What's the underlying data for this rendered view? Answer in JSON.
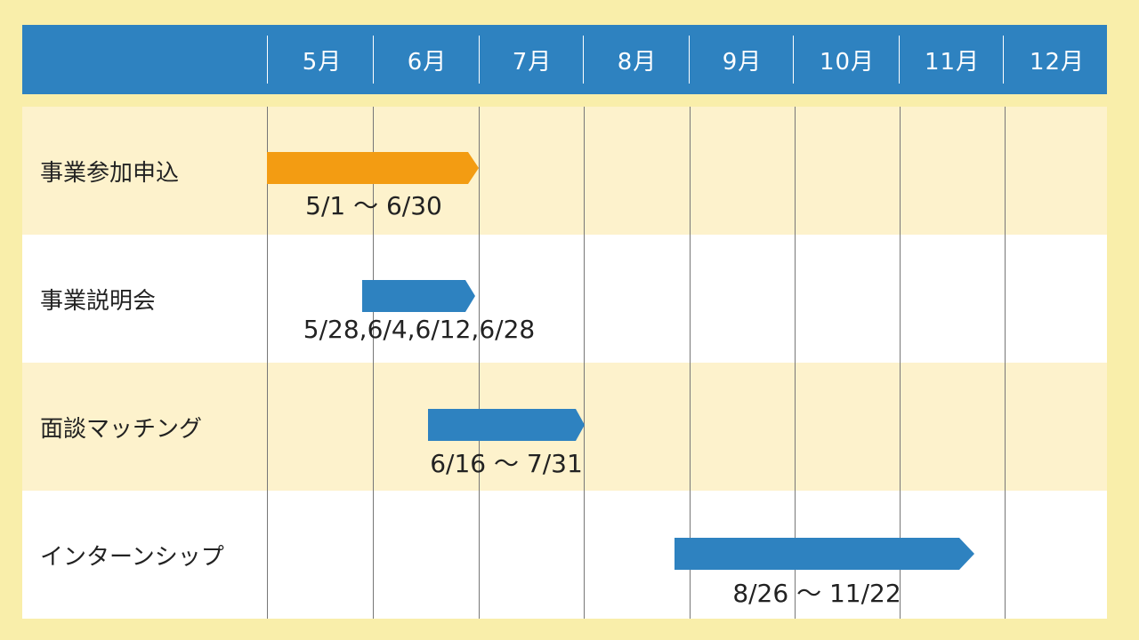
{
  "header": {
    "months": [
      "5月",
      "6月",
      "7月",
      "8月",
      "9月",
      "10月",
      "11月",
      "12月"
    ]
  },
  "rows": [
    {
      "label": "事業参加申込",
      "dates": "5/1 ～ 6/30",
      "color": "#f39c12"
    },
    {
      "label": "事業説明会",
      "dates": "5/28,6/4,6/12,6/28",
      "color": "#2e82c0"
    },
    {
      "label": "面談マッチング",
      "dates": "6/16 ～ 7/31",
      "color": "#2e82c0"
    },
    {
      "label": "インターンシップ",
      "dates": "8/26 ～ 11/22",
      "color": "#2e82c0"
    }
  ],
  "colors": {
    "header_bg": "#2e82c0",
    "page_bg": "#f9eeaa",
    "row_alt_bg": "#fdf2cc",
    "row_plain_bg": "#ffffff",
    "bar_orange": "#f39c12",
    "bar_blue": "#2e82c0"
  }
}
